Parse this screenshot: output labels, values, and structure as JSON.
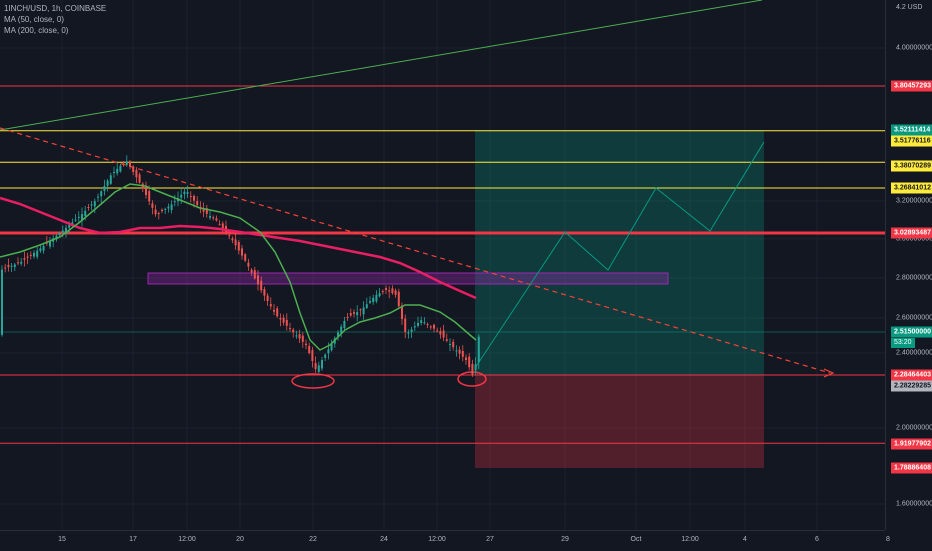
{
  "header": {
    "symbol_line": "1INCH/USD, 1h, COINBASE",
    "ma50_line": "MA (50, close, 0)",
    "ma200_line": "MA (200, close, 0)"
  },
  "axis": {
    "currency_label": "4.2 USD",
    "y_ticks": [
      {
        "label": "4.00000000",
        "value": 4.0
      },
      {
        "label": "3.20000000",
        "value": 3.2
      },
      {
        "label": "3.00000000",
        "value": 3.0
      },
      {
        "label": "2.80000000",
        "value": 2.8
      },
      {
        "label": "2.60000000",
        "value": 2.6
      },
      {
        "label": "2.40000000",
        "value": 2.4
      },
      {
        "label": "2.00000000",
        "value": 2.0
      },
      {
        "label": "1.60000000",
        "value": 1.6
      }
    ],
    "x_ticks": [
      "15",
      "17",
      "12:00",
      "20",
      "22",
      "24",
      "12:00",
      "27",
      "29",
      "Oct",
      "12:00",
      "4",
      "6",
      "8"
    ]
  },
  "price_labels": [
    {
      "text": "3.80457293",
      "value": 3.80457293,
      "bg": "#f23645",
      "fg": "#ffffff"
    },
    {
      "text": "3.52111414",
      "value": 3.52111414,
      "bg": "#089981",
      "fg": "#ffffff"
    },
    {
      "text": "3.51776116",
      "value": 3.51776116,
      "bg": "#ffeb3b",
      "fg": "#131722"
    },
    {
      "text": "3.38070289",
      "value": 3.38070289,
      "bg": "#ffeb3b",
      "fg": "#131722"
    },
    {
      "text": "3.26841012",
      "value": 3.26841012,
      "bg": "#ffeb3b",
      "fg": "#131722"
    },
    {
      "text": "3.02893487",
      "value": 3.02893487,
      "bg": "#f23645",
      "fg": "#ffffff"
    },
    {
      "text": "2.51500000",
      "value": 2.515,
      "bg": "#089981",
      "fg": "#ffffff"
    },
    {
      "text": "2.28464403",
      "value": 2.28464403,
      "bg": "#f23645",
      "fg": "#ffffff"
    },
    {
      "text": "2.28229285",
      "value": 2.28229285,
      "bg": "#b2b5be",
      "fg": "#131722"
    },
    {
      "text": "1.91977902",
      "value": 1.91977902,
      "bg": "#f23645",
      "fg": "#ffffff"
    },
    {
      "text": "1.78886408",
      "value": 1.78886408,
      "bg": "#f23645",
      "fg": "#ffffff"
    }
  ],
  "countdown": "53:20",
  "levels": [
    {
      "value": 3.80457293,
      "color": "#f23645"
    },
    {
      "value": 3.51776116,
      "color": "#ffeb3b"
    },
    {
      "value": 3.38070289,
      "color": "#ffeb3b"
    },
    {
      "value": 3.26841012,
      "color": "#ffeb3b"
    },
    {
      "value": 3.02893487,
      "color": "#f23645"
    },
    {
      "value": 2.28464403,
      "color": "#f23645"
    },
    {
      "value": 1.91977902,
      "color": "#f23645"
    }
  ],
  "colors": {
    "background": "#131722",
    "ma50": "#4caf50",
    "ma200": "#e91e63",
    "up": "#26a69a",
    "down": "#ef5350",
    "purple_zone": "#9c27b0"
  }
}
